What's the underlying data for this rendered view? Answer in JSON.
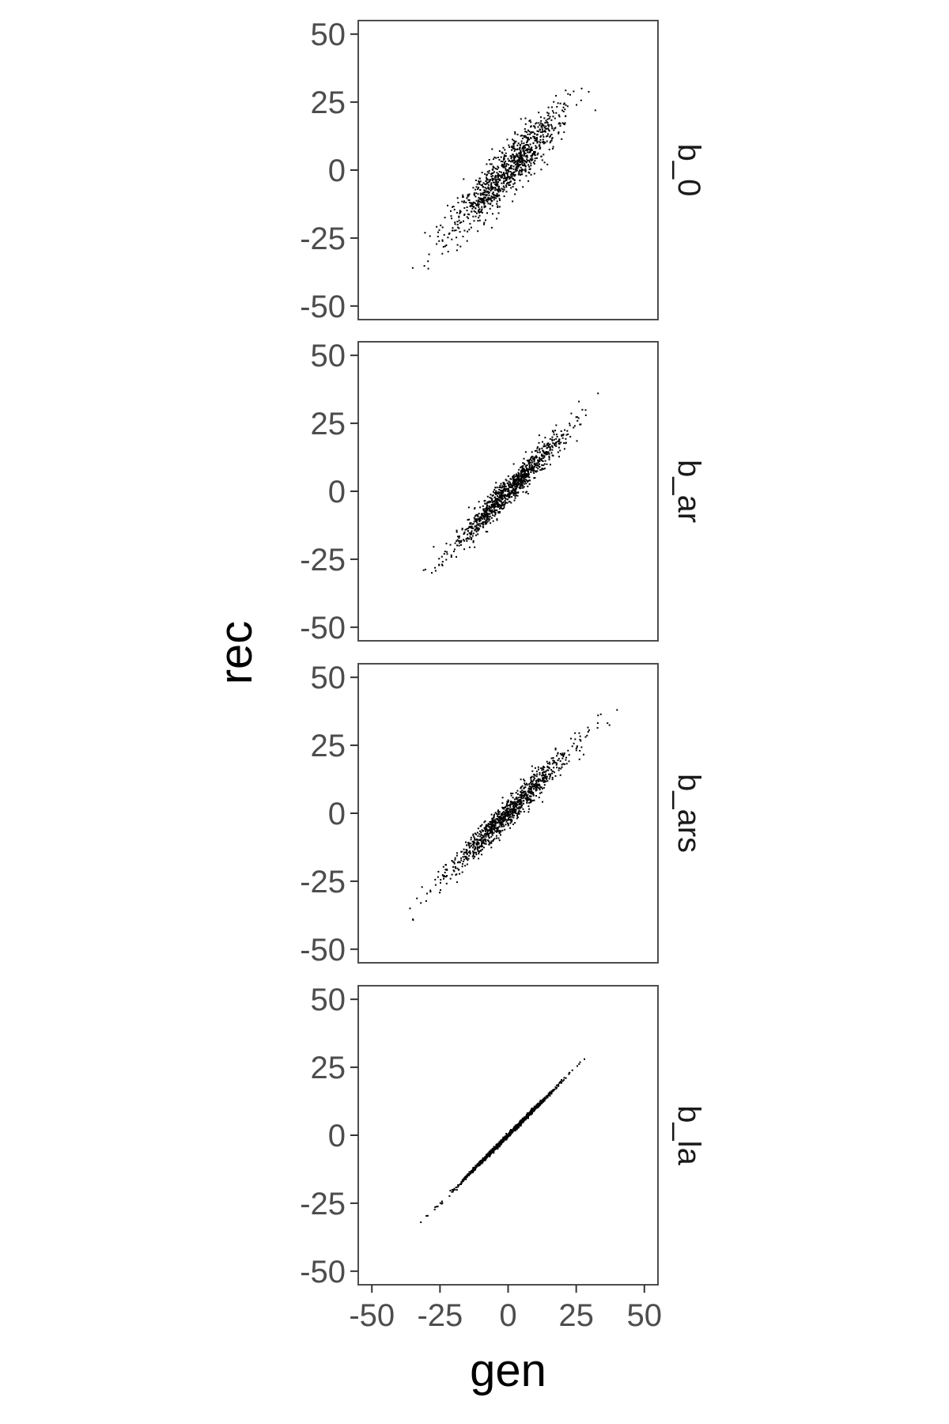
{
  "chart_data": {
    "type": "scatter",
    "layout": "vertical facets (one column), shared x and y axes",
    "xlabel": "gen",
    "ylabel": "rec",
    "xlim": [
      -55,
      55
    ],
    "ylim": [
      -55,
      55
    ],
    "xticks": [
      -50,
      -25,
      0,
      25,
      50
    ],
    "yticks": [
      -50,
      -25,
      0,
      25,
      50
    ],
    "xtick_labels": [
      "-50",
      "-25",
      "0",
      "25",
      "50"
    ],
    "ytick_labels": [
      "50",
      "25",
      "0",
      "-25",
      "-50"
    ],
    "grid": false,
    "legend": "none",
    "marker_color": "#000000",
    "panel_border_color": "#4d4d4d",
    "panels": [
      {
        "facet_label": "b_0",
        "n_points": 1000,
        "x_range": [
          -35,
          32
        ],
        "relationship": "strong positive correlation, widest spread",
        "approx_slope": 1.0,
        "approx_residual_sd": 4.5,
        "sample_points": [
          [
            -35,
            -36
          ],
          [
            -29,
            -31
          ],
          [
            -22,
            -30
          ],
          [
            -12,
            -14
          ],
          [
            0,
            0
          ],
          [
            12,
            14
          ],
          [
            22,
            28
          ],
          [
            27,
            30
          ],
          [
            32,
            22
          ]
        ]
      },
      {
        "facet_label": "b_ar",
        "n_points": 1000,
        "x_range": [
          -31,
          33
        ],
        "relationship": "strong positive correlation, moderate spread",
        "approx_slope": 1.0,
        "approx_residual_sd": 2.6,
        "sample_points": [
          [
            -31,
            -29
          ],
          [
            -28,
            -30
          ],
          [
            -18,
            -20
          ],
          [
            0,
            0
          ],
          [
            15,
            17
          ],
          [
            26,
            33
          ],
          [
            33,
            36
          ]
        ]
      },
      {
        "facet_label": "b_ars",
        "n_points": 1000,
        "x_range": [
          -36,
          40
        ],
        "relationship": "strong positive correlation, moderate spread",
        "approx_slope": 1.0,
        "approx_residual_sd": 2.6,
        "sample_points": [
          [
            -36,
            -35
          ],
          [
            -32,
            -33
          ],
          [
            -20,
            -21
          ],
          [
            0,
            0
          ],
          [
            20,
            22
          ],
          [
            33,
            36
          ],
          [
            40,
            38
          ]
        ]
      },
      {
        "facet_label": "b_la",
        "n_points": 1000,
        "x_range": [
          -32,
          28
        ],
        "relationship": "near-perfect positive correlation (points lie on a line)",
        "approx_slope": 1.0,
        "approx_residual_sd": 0.4,
        "sample_points": [
          [
            -32,
            -32
          ],
          [
            -15,
            -15
          ],
          [
            0,
            0
          ],
          [
            15,
            15
          ],
          [
            28,
            28
          ]
        ]
      }
    ]
  }
}
